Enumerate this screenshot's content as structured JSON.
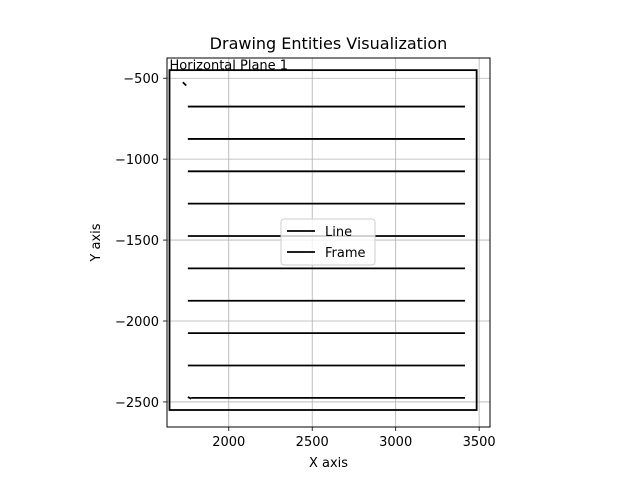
{
  "chart_data": {
    "type": "line",
    "title": "Drawing Entities Visualization",
    "xlabel": "X axis",
    "ylabel": "Y axis",
    "xlim": [
      1630,
      3565
    ],
    "ylim": [
      -2655,
      -375
    ],
    "xticks": [
      2000,
      2500,
      3000,
      3500
    ],
    "yticks": [
      -500,
      -1000,
      -1500,
      -2000,
      -2500
    ],
    "grid": true,
    "legend": {
      "placement": "center",
      "entries": [
        "Line",
        "Frame"
      ]
    },
    "annotations": [
      {
        "text": "Horizontal Plane 1",
        "x": 1645,
        "y": -420
      }
    ],
    "series": [
      {
        "name": "Line",
        "color": "#000000",
        "segments": [
          [
            [
              1755,
              -675
            ],
            [
              3415,
              -675
            ]
          ],
          [
            [
              1755,
              -875
            ],
            [
              3415,
              -875
            ]
          ],
          [
            [
              1755,
              -1075
            ],
            [
              3415,
              -1075
            ]
          ],
          [
            [
              1755,
              -1275
            ],
            [
              3415,
              -1275
            ]
          ],
          [
            [
              1755,
              -1475
            ],
            [
              3415,
              -1475
            ]
          ],
          [
            [
              1755,
              -1675
            ],
            [
              3415,
              -1675
            ]
          ],
          [
            [
              1755,
              -1875
            ],
            [
              3415,
              -1875
            ]
          ],
          [
            [
              1755,
              -2075
            ],
            [
              3415,
              -2075
            ]
          ],
          [
            [
              1755,
              -2275
            ],
            [
              3415,
              -2275
            ]
          ],
          [
            [
              1775,
              -2475
            ],
            [
              3415,
              -2475
            ]
          ],
          [
            [
              1755,
              -2470
            ],
            [
              1775,
              -2480
            ]
          ],
          [
            [
              1725,
              -525
            ],
            [
              1745,
              -545
            ]
          ]
        ]
      },
      {
        "name": "Frame",
        "color": "#000000",
        "rect": [
          [
            1645,
            -450
          ],
          [
            3485,
            -2550
          ]
        ]
      }
    ]
  }
}
